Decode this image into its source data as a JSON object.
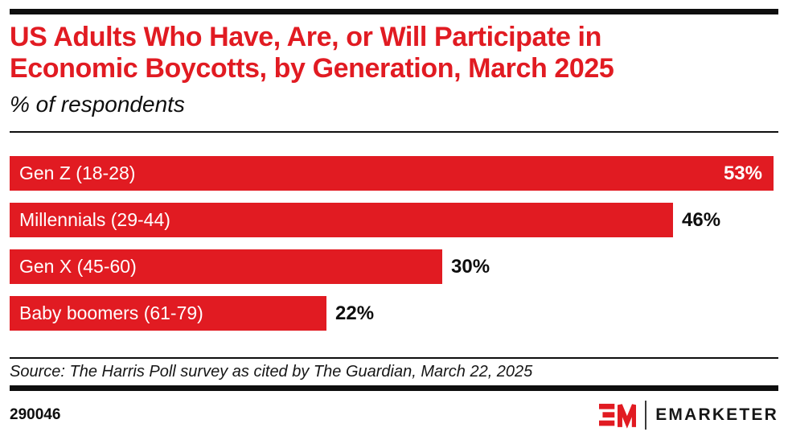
{
  "page": {
    "background": "#ffffff",
    "accent_red": "#e11b22",
    "text_black": "#0e0e0e"
  },
  "header": {
    "title_line1": "US Adults Who Have, Are, or Will Participate in",
    "title_line2": "Economic Boycotts, by Generation, March 2025",
    "subtitle": "% of respondents"
  },
  "chart_data": {
    "type": "bar",
    "orientation": "horizontal",
    "title": "US Adults Who Have, Are, or Will Participate in Economic Boycotts, by Generation, March 2025",
    "subtitle": "% of respondents",
    "categories": [
      "Gen Z (18-28)",
      "Millennials (29-44)",
      "Gen X (45-60)",
      "Baby boomers (61-79)"
    ],
    "values": [
      53,
      46,
      30,
      22
    ],
    "value_labels": [
      "53%",
      "46%",
      "30%",
      "22%"
    ],
    "value_label_position": [
      "inside",
      "outside",
      "outside",
      "outside"
    ],
    "bar_color": "#e11b22",
    "xlim": [
      0,
      53
    ],
    "grid": false,
    "legend": "none"
  },
  "footer": {
    "source": "Source: The Harris Poll survey as cited by The Guardian, March 22, 2025",
    "chart_id": "290046",
    "brand": {
      "logo_mark": "EM",
      "logo_text": "EMARKETER"
    }
  }
}
